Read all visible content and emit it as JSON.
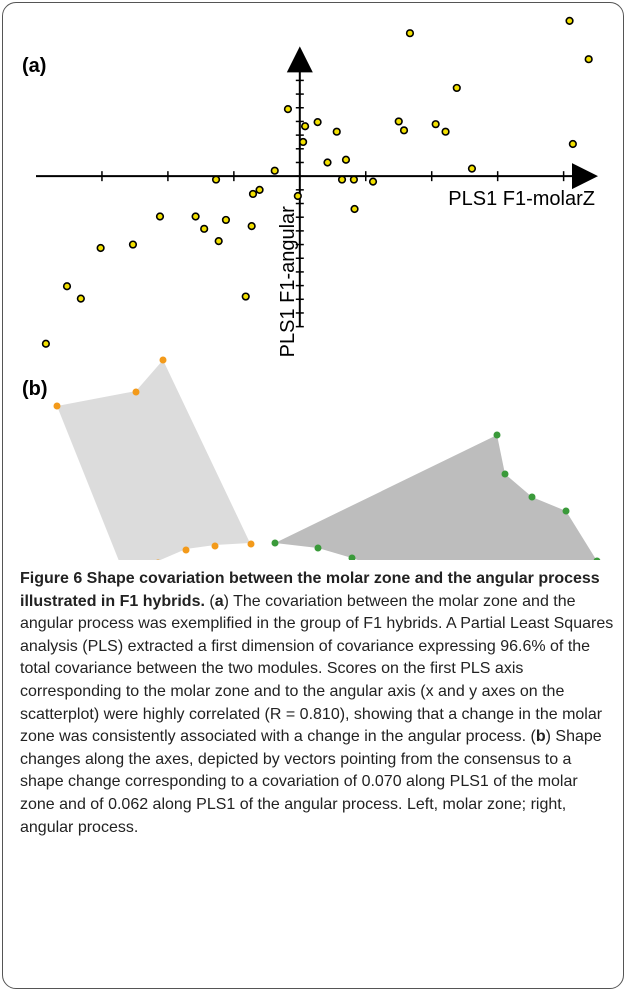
{
  "figure": {
    "panel_a_label": "(a)",
    "panel_b_label": "(b)",
    "chart_data": {
      "type": "scatter",
      "x_label": "PLS1 F1-molarZ",
      "y_label": "PLS1 F1-angular",
      "color": "#f2e000",
      "x": [
        1.67,
        4.09,
        4.38,
        2.38,
        -0.18,
        0.27,
        0.08,
        0.56,
        1.5,
        1.58,
        2.06,
        2.21,
        0.05,
        0.42,
        0.7,
        2.61,
        0.64,
        0.82,
        1.11,
        -0.38,
        -1.27,
        -0.61,
        -0.71,
        -0.03,
        0.83,
        -2.12,
        -1.58,
        -1.45,
        -1.12,
        -0.73,
        -1.23,
        -2.53,
        -3.02,
        -3.53,
        -3.32,
        -0.82,
        -3.85,
        4.14
      ],
      "values": [
        2.09,
        2.27,
        1.71,
        1.29,
        0.98,
        0.79,
        0.73,
        0.65,
        0.8,
        0.67,
        0.76,
        0.65,
        0.5,
        0.2,
        0.24,
        0.11,
        -0.05,
        -0.05,
        -0.08,
        0.08,
        -0.05,
        -0.2,
        -0.26,
        -0.29,
        -0.48,
        -0.59,
        -0.59,
        -0.77,
        -0.64,
        -0.73,
        -0.95,
        -1.0,
        -1.05,
        -1.61,
        -1.79,
        -1.76,
        -2.45,
        0.47
      ],
      "xlim": [
        -4.0,
        4.4
      ],
      "ylim": [
        -2.6,
        2.4
      ],
      "xticks": [
        -3,
        -2,
        -1,
        0,
        1,
        2,
        3,
        4
      ],
      "yticks": [
        -2.2,
        -2.0,
        -1.8,
        -1.6,
        -1.4,
        -1.2,
        -1.0,
        -0.8,
        -0.6,
        -0.4,
        -0.2,
        0,
        0.2,
        0.4,
        0.6,
        0.8,
        1.0,
        1.2,
        1.4
      ]
    },
    "caption": {
      "title": "Figure 6 Shape covariation between the molar zone and the angular process illustrated in F1 hybrids.",
      "body": [
        " (",
        "a",
        ") The covariation between the molar zone and the angular process was exemplified in the group of F1 hybrids. A Partial Least Squares analysis (PLS) extracted a first dimension of covariance expressing 96.6% of the total covariance between the two modules. Scores on the first PLS axis corresponding to the molar zone and to the angular axis (x and y axes on the scatterplot) were highly correlated (R = 0.810), showing that a change in the molar zone was consistently associated with a change in the angular process. (",
        "b",
        ") Shape changes along the axes, depicted by vectors pointing from the consensus to a shape change corresponding to a covariation of 0.070 along PLS1 of the molar zone and of 0.062 along PLS1 of the angular process. Left, molar zone; right, angular process."
      ]
    }
  }
}
